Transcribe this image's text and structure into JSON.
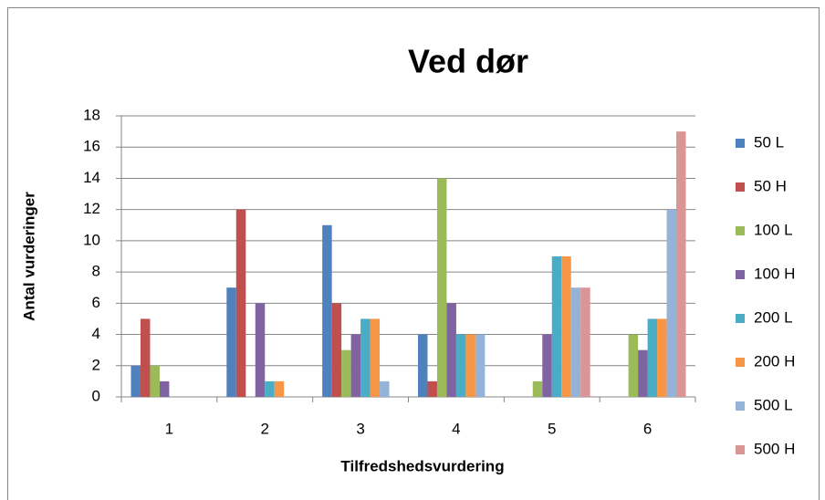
{
  "chart_data": {
    "type": "bar",
    "title": "Ved dør",
    "x_label": "Tilfredshedsvurdering",
    "y_label": "Antal vurderinger",
    "categories": [
      "1",
      "2",
      "3",
      "4",
      "5",
      "6"
    ],
    "series": [
      {
        "name": "50 L",
        "color": "#4F81BD",
        "values": [
          2,
          7,
          11,
          4,
          0,
          0
        ]
      },
      {
        "name": "50 H",
        "color": "#C0504D",
        "values": [
          5,
          12,
          6,
          1,
          0,
          0
        ]
      },
      {
        "name": "100 L",
        "color": "#9BBB59",
        "values": [
          2,
          0,
          3,
          14,
          1,
          4
        ]
      },
      {
        "name": "100 H",
        "color": "#8064A2",
        "values": [
          1,
          6,
          4,
          6,
          4,
          3
        ]
      },
      {
        "name": "200 L",
        "color": "#4BACC6",
        "values": [
          0,
          1,
          5,
          4,
          9,
          5
        ]
      },
      {
        "name": "200 H",
        "color": "#F79646",
        "values": [
          0,
          1,
          5,
          4,
          9,
          5
        ]
      },
      {
        "name": "500 L",
        "color": "#95B3D7",
        "values": [
          0,
          0,
          1,
          4,
          7,
          12
        ]
      },
      {
        "name": "500 H",
        "color": "#DA9694",
        "values": [
          0,
          0,
          0,
          0,
          7,
          17
        ]
      }
    ],
    "ylim": [
      0,
      18
    ],
    "yticks": [
      0,
      2,
      4,
      6,
      8,
      10,
      12,
      14,
      16,
      18
    ],
    "grid": true,
    "legend": "right"
  }
}
